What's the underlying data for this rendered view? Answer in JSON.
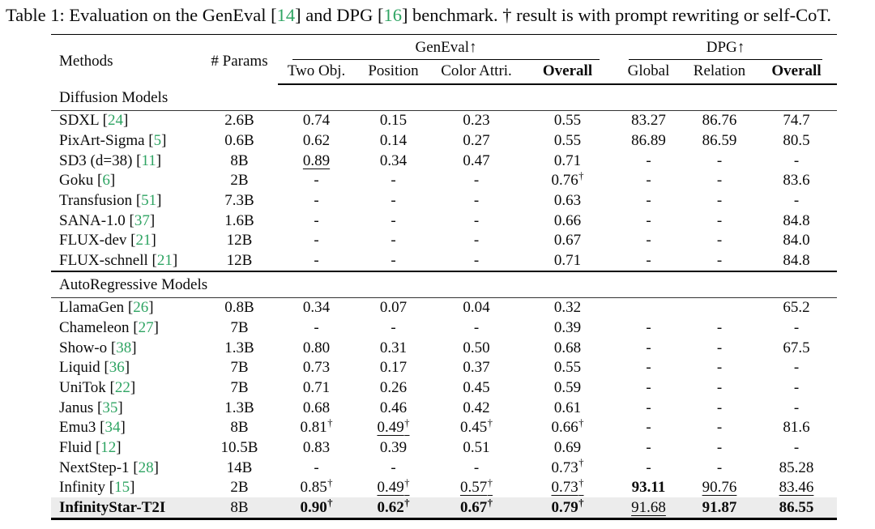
{
  "colors": {
    "citation_green": "#2fa463",
    "highlight_bg": "#ececec",
    "text": "#0b0b0b"
  },
  "caption": {
    "parts": [
      {
        "text": "Table 1: Evaluation on the GenEval ["
      },
      {
        "text": "14",
        "green": true
      },
      {
        "text": "] and DPG ["
      },
      {
        "text": "16",
        "green": true
      },
      {
        "text": "] benchmark. † result is with prompt rewriting or self-CoT."
      }
    ]
  },
  "table": {
    "columns": {
      "methods": "Methods",
      "params": "# Params",
      "geneval_group": "GenEval↑",
      "dpg_group": "DPG↑",
      "sub": [
        {
          "label": "Two Obj."
        },
        {
          "label": "Position"
        },
        {
          "label": "Color Attri."
        },
        {
          "label": "Overall",
          "bold": true
        },
        {
          "label": "Global"
        },
        {
          "label": "Relation"
        },
        {
          "label": "Overall",
          "bold": true
        }
      ]
    },
    "sections": [
      {
        "title": "Diffusion Models",
        "rows": [
          {
            "method": "SDXL",
            "cite": "24",
            "params": "2.6B",
            "cells": [
              {
                "v": "0.74"
              },
              {
                "v": "0.15"
              },
              {
                "v": "0.23"
              },
              {
                "v": "0.55"
              },
              {
                "v": "83.27"
              },
              {
                "v": "86.76"
              },
              {
                "v": "74.7"
              }
            ]
          },
          {
            "method": "PixArt-Sigma",
            "cite": "5",
            "params": "0.6B",
            "cells": [
              {
                "v": "0.62"
              },
              {
                "v": "0.14"
              },
              {
                "v": "0.27"
              },
              {
                "v": "0.55"
              },
              {
                "v": "86.89"
              },
              {
                "v": "86.59"
              },
              {
                "v": "80.5"
              }
            ]
          },
          {
            "method": "SD3 (d=38)",
            "cite": "11",
            "params": "8B",
            "cells": [
              {
                "v": "0.89",
                "u": true
              },
              {
                "v": "0.34"
              },
              {
                "v": "0.47"
              },
              {
                "v": "0.71"
              },
              {
                "v": "-"
              },
              {
                "v": "-"
              },
              {
                "v": "-"
              }
            ]
          },
          {
            "method": "Goku",
            "cite": "6",
            "params": "2B",
            "cells": [
              {
                "v": "-"
              },
              {
                "v": "-"
              },
              {
                "v": "-"
              },
              {
                "v": "0.76",
                "sup": "†"
              },
              {
                "v": "-"
              },
              {
                "v": "-"
              },
              {
                "v": "83.6"
              }
            ]
          },
          {
            "method": "Transfusion",
            "cite": "51",
            "params": "7.3B",
            "cells": [
              {
                "v": "-"
              },
              {
                "v": "-"
              },
              {
                "v": "-"
              },
              {
                "v": "0.63"
              },
              {
                "v": "-"
              },
              {
                "v": "-"
              },
              {
                "v": "-"
              }
            ]
          },
          {
            "method": "SANA-1.0",
            "cite": "37",
            "params": "1.6B",
            "cells": [
              {
                "v": "-"
              },
              {
                "v": "-"
              },
              {
                "v": "-"
              },
              {
                "v": "0.66"
              },
              {
                "v": "-"
              },
              {
                "v": "-"
              },
              {
                "v": "84.8"
              }
            ]
          },
          {
            "method": "FLUX-dev",
            "cite": "21",
            "params": "12B",
            "cells": [
              {
                "v": "-"
              },
              {
                "v": "-"
              },
              {
                "v": "-"
              },
              {
                "v": "0.67"
              },
              {
                "v": "-"
              },
              {
                "v": "-"
              },
              {
                "v": "84.0"
              }
            ]
          },
          {
            "method": "FLUX-schnell",
            "cite": "21",
            "params": "12B",
            "cells": [
              {
                "v": "-"
              },
              {
                "v": "-"
              },
              {
                "v": "-"
              },
              {
                "v": "0.71"
              },
              {
                "v": "-"
              },
              {
                "v": "-"
              },
              {
                "v": "84.8"
              }
            ]
          }
        ]
      },
      {
        "title": "AutoRegressive Models",
        "rows": [
          {
            "method": "LlamaGen",
            "cite": "26",
            "params": "0.8B",
            "cells": [
              {
                "v": "0.34"
              },
              {
                "v": "0.07"
              },
              {
                "v": "0.04"
              },
              {
                "v": "0.32"
              },
              {
                "v": ""
              },
              {
                "v": ""
              },
              {
                "v": "65.2"
              }
            ]
          },
          {
            "method": "Chameleon",
            "cite": "27",
            "params": "7B",
            "cells": [
              {
                "v": "-"
              },
              {
                "v": "-"
              },
              {
                "v": "-"
              },
              {
                "v": "0.39"
              },
              {
                "v": "-"
              },
              {
                "v": "-"
              },
              {
                "v": "-"
              }
            ]
          },
          {
            "method": "Show-o",
            "cite": "38",
            "params": "1.3B",
            "cells": [
              {
                "v": "0.80"
              },
              {
                "v": "0.31"
              },
              {
                "v": "0.50"
              },
              {
                "v": "0.68"
              },
              {
                "v": "-"
              },
              {
                "v": "-"
              },
              {
                "v": "67.5"
              }
            ]
          },
          {
            "method": "Liquid",
            "cite": "36",
            "params": "7B",
            "cells": [
              {
                "v": "0.73"
              },
              {
                "v": "0.17"
              },
              {
                "v": "0.37"
              },
              {
                "v": "0.55"
              },
              {
                "v": "-"
              },
              {
                "v": "-"
              },
              {
                "v": "-"
              }
            ]
          },
          {
            "method": "UniTok",
            "cite": "22",
            "params": "7B",
            "cells": [
              {
                "v": "0.71"
              },
              {
                "v": "0.26"
              },
              {
                "v": "0.45"
              },
              {
                "v": "0.59"
              },
              {
                "v": "-"
              },
              {
                "v": "-"
              },
              {
                "v": "-"
              }
            ]
          },
          {
            "method": "Janus",
            "cite": "35",
            "params": "1.3B",
            "cells": [
              {
                "v": "0.68"
              },
              {
                "v": "0.46"
              },
              {
                "v": "0.42"
              },
              {
                "v": "0.61"
              },
              {
                "v": "-"
              },
              {
                "v": "-"
              },
              {
                "v": "-"
              }
            ]
          },
          {
            "method": "Emu3",
            "cite": "34",
            "params": "8B",
            "cells": [
              {
                "v": "0.81",
                "sup": "†"
              },
              {
                "v": "0.49",
                "sup": "†",
                "u": true
              },
              {
                "v": "0.45",
                "sup": "†"
              },
              {
                "v": "0.66",
                "sup": "†"
              },
              {
                "v": "-"
              },
              {
                "v": "-"
              },
              {
                "v": "81.6"
              }
            ]
          },
          {
            "method": "Fluid",
            "cite": "12",
            "params": "10.5B",
            "cells": [
              {
                "v": "0.83"
              },
              {
                "v": "0.39"
              },
              {
                "v": "0.51"
              },
              {
                "v": "0.69"
              },
              {
                "v": "-"
              },
              {
                "v": "-"
              },
              {
                "v": "-"
              }
            ]
          },
          {
            "method": "NextStep-1",
            "cite": "28",
            "params": "14B",
            "cells": [
              {
                "v": "-"
              },
              {
                "v": "-"
              },
              {
                "v": "-"
              },
              {
                "v": "0.73",
                "sup": "†"
              },
              {
                "v": "-"
              },
              {
                "v": "-"
              },
              {
                "v": "85.28"
              }
            ]
          },
          {
            "method": "Infinity",
            "cite": "15",
            "params": "2B",
            "cells": [
              {
                "v": "0.85",
                "sup": "†"
              },
              {
                "v": "0.49",
                "sup": "†",
                "u": true
              },
              {
                "v": "0.57",
                "sup": "†",
                "u": true
              },
              {
                "v": "0.73",
                "sup": "†",
                "u": true
              },
              {
                "v": "93.11",
                "b": true
              },
              {
                "v": "90.76",
                "u": true
              },
              {
                "v": "83.46",
                "u": true
              }
            ]
          },
          {
            "method": "InfinityStar-T2I",
            "cite": null,
            "params": "8B",
            "highlight": true,
            "bold_method": true,
            "cells": [
              {
                "v": "0.90",
                "sup": "†",
                "b": true
              },
              {
                "v": "0.62",
                "sup": "†",
                "b": true
              },
              {
                "v": "0.67",
                "sup": "†",
                "b": true
              },
              {
                "v": "0.79",
                "sup": "†",
                "b": true
              },
              {
                "v": "91.68",
                "u": true
              },
              {
                "v": "91.87",
                "b": true
              },
              {
                "v": "86.55",
                "b": true
              }
            ]
          }
        ]
      }
    ]
  }
}
